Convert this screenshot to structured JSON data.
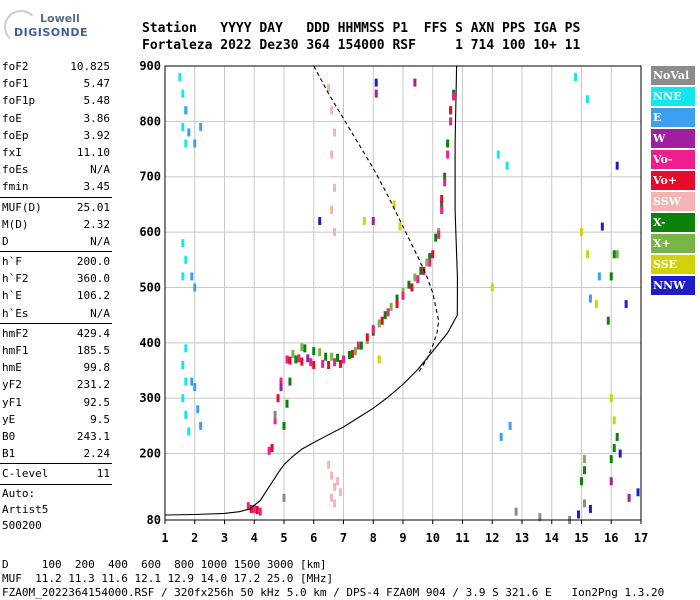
{
  "logo": {
    "line1": "Lowell",
    "line2": "DIGISONDE"
  },
  "header": {
    "labels": "Station   YYYY DAY   DDD HHMMSS P1  FFS S AXN PPS IGA PS",
    "values": "Fortaleza 2022 Dez30 364 154000 RSF     1 714 100 10+ 11"
  },
  "params": {
    "group1": [
      {
        "k": "foF2",
        "v": "10.825"
      },
      {
        "k": "foF1",
        "v": "5.47"
      },
      {
        "k": "foF1p",
        "v": "5.48"
      },
      {
        "k": "foE",
        "v": "3.86"
      },
      {
        "k": "foEp",
        "v": "3.92"
      },
      {
        "k": "fxI",
        "v": "11.10"
      },
      {
        "k": "foEs",
        "v": "N/A"
      },
      {
        "k": "fmin",
        "v": "3.45"
      }
    ],
    "group2": [
      {
        "k": "MUF(D)",
        "v": "25.01"
      },
      {
        "k": "M(D)",
        "v": "2.32"
      },
      {
        "k": "D",
        "v": "N/A"
      }
    ],
    "group3": [
      {
        "k": "h`F",
        "v": "200.0"
      },
      {
        "k": "h`F2",
        "v": "360.0"
      },
      {
        "k": "h`E",
        "v": "106.2"
      },
      {
        "k": "h`Es",
        "v": "N/A"
      }
    ],
    "group4": [
      {
        "k": "hmF2",
        "v": "429.4"
      },
      {
        "k": "hmF1",
        "v": "185.5"
      },
      {
        "k": "hmE",
        "v": "99.8"
      },
      {
        "k": "yF2",
        "v": "231.2"
      },
      {
        "k": "yF1",
        "v": "92.5"
      },
      {
        "k": "yE",
        "v": "9.5"
      },
      {
        "k": "B0",
        "v": "243.1"
      },
      {
        "k": "B1",
        "v": "2.24"
      }
    ],
    "clevel": {
      "k": "C-level",
      "v": "11"
    },
    "auto": [
      "Auto:",
      "Artist5",
      "500200"
    ]
  },
  "legend": [
    {
      "label": "NoVal",
      "color": "#8c8c8c"
    },
    {
      "label": "NNE",
      "color": "#14e6f0"
    },
    {
      "label": "E",
      "color": "#3ca0f0"
    },
    {
      "label": "W",
      "color": "#a01ea0"
    },
    {
      "label": "Vo-",
      "color": "#f01e8c"
    },
    {
      "label": "Vo+",
      "color": "#e60a2d"
    },
    {
      "label": "SSW",
      "color": "#f5b4b4"
    },
    {
      "label": "X-",
      "color": "#0a820a"
    },
    {
      "label": "X+",
      "color": "#78b446"
    },
    {
      "label": "SSE",
      "color": "#d2d20a"
    },
    {
      "label": "NNW",
      "color": "#1e1ec8"
    }
  ],
  "footer": {
    "line1": "D     100  200  400  600  800 1000 1500 3000 [km]",
    "line2": "MUF  11.2 11.3 11.6 12.1 12.9 14.0 17.2 25.0 [MHz]",
    "line3": "FZA0M_2022364154000.RSF / 320fx256h 50 kHz 5.0 km / DPS-4 FZA0M 904 / 3.9 S 321.6 E   Ion2Png 1.3.20"
  },
  "chart_data": {
    "type": "scatter",
    "title": "",
    "xlabel": "",
    "ylabel": "",
    "xlim": [
      1,
      17
    ],
    "ylim": [
      80,
      900
    ],
    "xticks": [
      1,
      2,
      3,
      4,
      5,
      6,
      7,
      8,
      9,
      10,
      11,
      12,
      13,
      14,
      15,
      16,
      17
    ],
    "yticks": [
      80,
      200,
      300,
      400,
      500,
      600,
      700,
      800,
      900
    ],
    "grid": true,
    "legend_position": "right",
    "series": [
      {
        "name": "X-",
        "color": "#0a820a",
        "points": [
          [
            5.0,
            250
          ],
          [
            5.1,
            290
          ],
          [
            5.2,
            330
          ],
          [
            5.4,
            370
          ],
          [
            5.7,
            390
          ],
          [
            6.0,
            385
          ],
          [
            6.4,
            375
          ],
          [
            6.8,
            373
          ],
          [
            7.2,
            378
          ],
          [
            7.6,
            395
          ],
          [
            8.0,
            420
          ],
          [
            8.4,
            450
          ],
          [
            8.8,
            480
          ],
          [
            9.2,
            505
          ],
          [
            9.6,
            530
          ],
          [
            9.9,
            555
          ],
          [
            10.1,
            590
          ],
          [
            10.3,
            650
          ],
          [
            10.4,
            700
          ],
          [
            10.5,
            760
          ],
          [
            10.6,
            820
          ],
          [
            10.7,
            850
          ],
          [
            15.0,
            150
          ],
          [
            15.1,
            170
          ],
          [
            16.0,
            190
          ],
          [
            16.1,
            210
          ],
          [
            16.2,
            230
          ],
          [
            15.9,
            440
          ],
          [
            16.0,
            520
          ],
          [
            16.1,
            560
          ]
        ]
      },
      {
        "name": "X+",
        "color": "#78b446",
        "points": [
          [
            5.3,
            380
          ],
          [
            5.6,
            392
          ],
          [
            6.2,
            383
          ],
          [
            6.6,
            375
          ],
          [
            7.4,
            385
          ],
          [
            7.8,
            405
          ],
          [
            8.2,
            435
          ],
          [
            8.6,
            465
          ],
          [
            9.0,
            492
          ],
          [
            9.4,
            518
          ],
          [
            9.8,
            545
          ],
          [
            10.2,
            600
          ],
          [
            15.1,
            190
          ],
          [
            16.2,
            560
          ]
        ]
      },
      {
        "name": "Vo-",
        "color": "#f01e8c",
        "points": [
          [
            4.5,
            205
          ],
          [
            4.7,
            260
          ],
          [
            4.9,
            330
          ],
          [
            5.1,
            370
          ],
          [
            5.5,
            372
          ],
          [
            5.9,
            365
          ],
          [
            6.3,
            362
          ],
          [
            6.7,
            365
          ],
          [
            7.0,
            370
          ],
          [
            7.5,
            395
          ],
          [
            8.0,
            425
          ],
          [
            8.5,
            455
          ],
          [
            9.0,
            485
          ],
          [
            9.5,
            515
          ],
          [
            9.9,
            545
          ],
          [
            10.2,
            595
          ],
          [
            10.3,
            640
          ],
          [
            10.4,
            690
          ],
          [
            10.5,
            740
          ],
          [
            10.6,
            800
          ],
          [
            10.7,
            845
          ],
          [
            3.8,
            105
          ],
          [
            4.0,
            100
          ],
          [
            4.2,
            95
          ]
        ]
      },
      {
        "name": "Vo+",
        "color": "#e60a2d",
        "points": [
          [
            4.6,
            210
          ],
          [
            4.8,
            300
          ],
          [
            5.2,
            368
          ],
          [
            5.6,
            366
          ],
          [
            6.0,
            360
          ],
          [
            6.5,
            360
          ],
          [
            6.9,
            362
          ],
          [
            7.3,
            380
          ],
          [
            7.8,
            410
          ],
          [
            8.3,
            440
          ],
          [
            8.8,
            470
          ],
          [
            9.3,
            500
          ],
          [
            9.7,
            530
          ],
          [
            10.0,
            560
          ],
          [
            10.3,
            660
          ],
          [
            10.6,
            820
          ],
          [
            3.9,
            100
          ],
          [
            4.1,
            98
          ]
        ]
      },
      {
        "name": "W",
        "color": "#a01ea0",
        "points": [
          [
            4.9,
            320
          ],
          [
            5.8,
            372
          ],
          [
            8.1,
            850
          ],
          [
            9.4,
            870
          ],
          [
            16.0,
            150
          ],
          [
            16.6,
            120
          ],
          [
            8.0,
            620
          ]
        ]
      },
      {
        "name": "NNE",
        "color": "#14e6f0",
        "points": [
          [
            1.5,
            880
          ],
          [
            1.6,
            850
          ],
          [
            1.7,
            820
          ],
          [
            1.6,
            790
          ],
          [
            1.7,
            760
          ],
          [
            1.6,
            580
          ],
          [
            1.7,
            550
          ],
          [
            1.6,
            520
          ],
          [
            1.7,
            390
          ],
          [
            1.6,
            360
          ],
          [
            1.7,
            330
          ],
          [
            1.6,
            300
          ],
          [
            1.7,
            270
          ],
          [
            1.8,
            240
          ],
          [
            12.2,
            740
          ],
          [
            12.5,
            720
          ],
          [
            14.8,
            880
          ],
          [
            15.2,
            840
          ]
        ]
      },
      {
        "name": "E",
        "color": "#3ca0f0",
        "points": [
          [
            1.7,
            820
          ],
          [
            1.8,
            780
          ],
          [
            2.0,
            760
          ],
          [
            2.2,
            790
          ],
          [
            1.9,
            520
          ],
          [
            2.0,
            500
          ],
          [
            1.9,
            330
          ],
          [
            2.0,
            320
          ],
          [
            2.1,
            280
          ],
          [
            2.2,
            250
          ],
          [
            12.3,
            230
          ],
          [
            12.6,
            250
          ],
          [
            15.3,
            480
          ],
          [
            15.6,
            520
          ]
        ]
      },
      {
        "name": "SSW",
        "color": "#f5b4b4",
        "points": [
          [
            6.5,
            860
          ],
          [
            6.6,
            820
          ],
          [
            6.7,
            780
          ],
          [
            6.6,
            740
          ],
          [
            6.7,
            680
          ],
          [
            6.6,
            640
          ],
          [
            6.7,
            600
          ],
          [
            6.5,
            180
          ],
          [
            6.6,
            160
          ],
          [
            6.7,
            140
          ],
          [
            6.6,
            120
          ],
          [
            6.7,
            110
          ],
          [
            6.8,
            150
          ],
          [
            6.9,
            130
          ]
        ]
      },
      {
        "name": "SSE",
        "color": "#d2d20a",
        "points": [
          [
            8.7,
            650
          ],
          [
            8.9,
            610
          ],
          [
            7.7,
            620
          ],
          [
            15.0,
            600
          ],
          [
            15.2,
            560
          ],
          [
            16.0,
            300
          ],
          [
            16.1,
            260
          ],
          [
            12.0,
            500
          ],
          [
            15.5,
            470
          ],
          [
            8.2,
            370
          ]
        ]
      },
      {
        "name": "NNW",
        "color": "#1e1ec8",
        "points": [
          [
            6.2,
            620
          ],
          [
            8.1,
            870
          ],
          [
            15.7,
            610
          ],
          [
            16.3,
            200
          ],
          [
            16.5,
            470
          ],
          [
            16.9,
            130
          ],
          [
            14.9,
            90
          ],
          [
            15.3,
            100
          ],
          [
            16.2,
            720
          ]
        ]
      },
      {
        "name": "NoVal",
        "color": "#8c8c8c",
        "points": [
          [
            4.7,
            270
          ],
          [
            5.0,
            120
          ],
          [
            12.8,
            95
          ],
          [
            13.6,
            85
          ],
          [
            14.6,
            80
          ],
          [
            15.1,
            110
          ]
        ]
      }
    ],
    "curves": [
      {
        "name": "profile",
        "style": "solid",
        "points": [
          [
            1,
            89
          ],
          [
            2,
            90
          ],
          [
            3,
            92
          ],
          [
            3.5,
            95
          ],
          [
            3.85,
            100
          ],
          [
            4.2,
            115
          ],
          [
            4.5,
            140
          ],
          [
            4.8,
            165
          ],
          [
            5.0,
            180
          ],
          [
            5.3,
            195
          ],
          [
            5.6,
            208
          ],
          [
            6.0,
            220
          ],
          [
            6.5,
            234
          ],
          [
            7.0,
            248
          ],
          [
            7.5,
            265
          ],
          [
            8.0,
            282
          ],
          [
            8.5,
            302
          ],
          [
            9.0,
            325
          ],
          [
            9.5,
            352
          ],
          [
            10.0,
            385
          ],
          [
            10.5,
            418
          ],
          [
            10.825,
            450
          ],
          [
            10.83,
            480
          ],
          [
            10.83,
            520
          ],
          [
            10.8,
            560
          ],
          [
            10.75,
            640
          ],
          [
            10.75,
            760
          ],
          [
            10.8,
            900
          ]
        ]
      },
      {
        "name": "model",
        "style": "dashed",
        "points": [
          [
            6.0,
            900
          ],
          [
            6.5,
            850
          ],
          [
            7.0,
            805
          ],
          [
            7.5,
            760
          ],
          [
            8.0,
            715
          ],
          [
            8.5,
            665
          ],
          [
            9.0,
            610
          ],
          [
            9.5,
            555
          ],
          [
            9.8,
            520
          ],
          [
            10.0,
            490
          ],
          [
            10.1,
            465
          ],
          [
            10.2,
            440
          ],
          [
            10.15,
            420
          ],
          [
            10.0,
            395
          ],
          [
            9.8,
            370
          ],
          [
            9.5,
            345
          ]
        ]
      }
    ]
  }
}
